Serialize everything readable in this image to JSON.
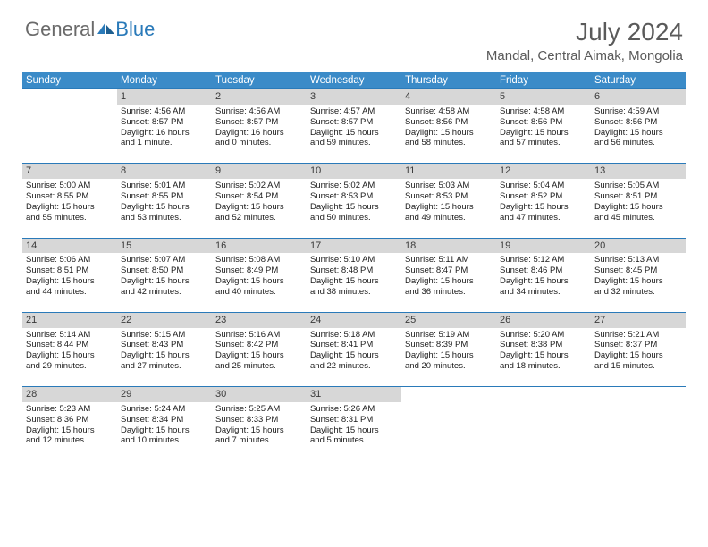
{
  "brand": {
    "word1": "General",
    "word2": "Blue"
  },
  "title": "July 2024",
  "location": "Mandal, Central Aimak, Mongolia",
  "header_bg": "#3b8bc8",
  "header_text": "#ffffff",
  "daynum_bg": "#d7d7d7",
  "rule_color": "#2a7ab9",
  "body_text": "#1a1a1a",
  "font_family": "Arial, Helvetica, sans-serif",
  "title_fontsize": 28,
  "location_fontsize": 15,
  "th_fontsize": 11.5,
  "daynum_fontsize": 11,
  "cell_fontsize": 9.5,
  "days": [
    "Sunday",
    "Monday",
    "Tuesday",
    "Wednesday",
    "Thursday",
    "Friday",
    "Saturday"
  ],
  "weeks": [
    [
      null,
      {
        "n": "1",
        "sr": "4:56 AM",
        "ss": "8:57 PM",
        "dl1": "Daylight: 16 hours",
        "dl2": "and 1 minute."
      },
      {
        "n": "2",
        "sr": "4:56 AM",
        "ss": "8:57 PM",
        "dl1": "Daylight: 16 hours",
        "dl2": "and 0 minutes."
      },
      {
        "n": "3",
        "sr": "4:57 AM",
        "ss": "8:57 PM",
        "dl1": "Daylight: 15 hours",
        "dl2": "and 59 minutes."
      },
      {
        "n": "4",
        "sr": "4:58 AM",
        "ss": "8:56 PM",
        "dl1": "Daylight: 15 hours",
        "dl2": "and 58 minutes."
      },
      {
        "n": "5",
        "sr": "4:58 AM",
        "ss": "8:56 PM",
        "dl1": "Daylight: 15 hours",
        "dl2": "and 57 minutes."
      },
      {
        "n": "6",
        "sr": "4:59 AM",
        "ss": "8:56 PM",
        "dl1": "Daylight: 15 hours",
        "dl2": "and 56 minutes."
      }
    ],
    [
      {
        "n": "7",
        "sr": "5:00 AM",
        "ss": "8:55 PM",
        "dl1": "Daylight: 15 hours",
        "dl2": "and 55 minutes."
      },
      {
        "n": "8",
        "sr": "5:01 AM",
        "ss": "8:55 PM",
        "dl1": "Daylight: 15 hours",
        "dl2": "and 53 minutes."
      },
      {
        "n": "9",
        "sr": "5:02 AM",
        "ss": "8:54 PM",
        "dl1": "Daylight: 15 hours",
        "dl2": "and 52 minutes."
      },
      {
        "n": "10",
        "sr": "5:02 AM",
        "ss": "8:53 PM",
        "dl1": "Daylight: 15 hours",
        "dl2": "and 50 minutes."
      },
      {
        "n": "11",
        "sr": "5:03 AM",
        "ss": "8:53 PM",
        "dl1": "Daylight: 15 hours",
        "dl2": "and 49 minutes."
      },
      {
        "n": "12",
        "sr": "5:04 AM",
        "ss": "8:52 PM",
        "dl1": "Daylight: 15 hours",
        "dl2": "and 47 minutes."
      },
      {
        "n": "13",
        "sr": "5:05 AM",
        "ss": "8:51 PM",
        "dl1": "Daylight: 15 hours",
        "dl2": "and 45 minutes."
      }
    ],
    [
      {
        "n": "14",
        "sr": "5:06 AM",
        "ss": "8:51 PM",
        "dl1": "Daylight: 15 hours",
        "dl2": "and 44 minutes."
      },
      {
        "n": "15",
        "sr": "5:07 AM",
        "ss": "8:50 PM",
        "dl1": "Daylight: 15 hours",
        "dl2": "and 42 minutes."
      },
      {
        "n": "16",
        "sr": "5:08 AM",
        "ss": "8:49 PM",
        "dl1": "Daylight: 15 hours",
        "dl2": "and 40 minutes."
      },
      {
        "n": "17",
        "sr": "5:10 AM",
        "ss": "8:48 PM",
        "dl1": "Daylight: 15 hours",
        "dl2": "and 38 minutes."
      },
      {
        "n": "18",
        "sr": "5:11 AM",
        "ss": "8:47 PM",
        "dl1": "Daylight: 15 hours",
        "dl2": "and 36 minutes."
      },
      {
        "n": "19",
        "sr": "5:12 AM",
        "ss": "8:46 PM",
        "dl1": "Daylight: 15 hours",
        "dl2": "and 34 minutes."
      },
      {
        "n": "20",
        "sr": "5:13 AM",
        "ss": "8:45 PM",
        "dl1": "Daylight: 15 hours",
        "dl2": "and 32 minutes."
      }
    ],
    [
      {
        "n": "21",
        "sr": "5:14 AM",
        "ss": "8:44 PM",
        "dl1": "Daylight: 15 hours",
        "dl2": "and 29 minutes."
      },
      {
        "n": "22",
        "sr": "5:15 AM",
        "ss": "8:43 PM",
        "dl1": "Daylight: 15 hours",
        "dl2": "and 27 minutes."
      },
      {
        "n": "23",
        "sr": "5:16 AM",
        "ss": "8:42 PM",
        "dl1": "Daylight: 15 hours",
        "dl2": "and 25 minutes."
      },
      {
        "n": "24",
        "sr": "5:18 AM",
        "ss": "8:41 PM",
        "dl1": "Daylight: 15 hours",
        "dl2": "and 22 minutes."
      },
      {
        "n": "25",
        "sr": "5:19 AM",
        "ss": "8:39 PM",
        "dl1": "Daylight: 15 hours",
        "dl2": "and 20 minutes."
      },
      {
        "n": "26",
        "sr": "5:20 AM",
        "ss": "8:38 PM",
        "dl1": "Daylight: 15 hours",
        "dl2": "and 18 minutes."
      },
      {
        "n": "27",
        "sr": "5:21 AM",
        "ss": "8:37 PM",
        "dl1": "Daylight: 15 hours",
        "dl2": "and 15 minutes."
      }
    ],
    [
      {
        "n": "28",
        "sr": "5:23 AM",
        "ss": "8:36 PM",
        "dl1": "Daylight: 15 hours",
        "dl2": "and 12 minutes."
      },
      {
        "n": "29",
        "sr": "5:24 AM",
        "ss": "8:34 PM",
        "dl1": "Daylight: 15 hours",
        "dl2": "and 10 minutes."
      },
      {
        "n": "30",
        "sr": "5:25 AM",
        "ss": "8:33 PM",
        "dl1": "Daylight: 15 hours",
        "dl2": "and 7 minutes."
      },
      {
        "n": "31",
        "sr": "5:26 AM",
        "ss": "8:31 PM",
        "dl1": "Daylight: 15 hours",
        "dl2": "and 5 minutes."
      },
      null,
      null,
      null
    ]
  ]
}
